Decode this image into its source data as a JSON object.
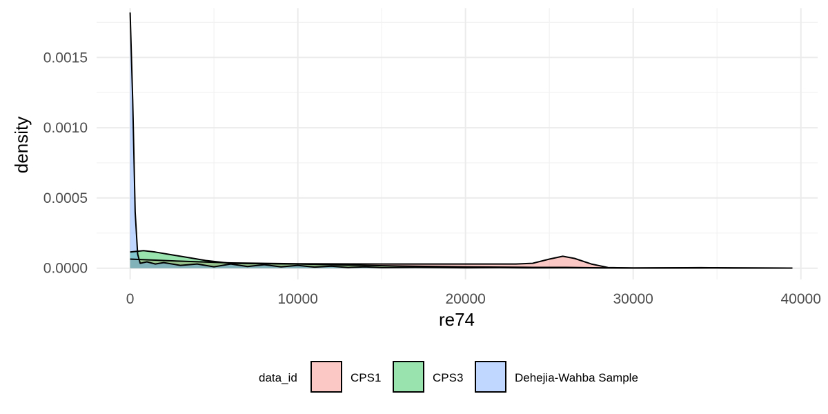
{
  "chart_data": {
    "type": "area",
    "xlabel": "re74",
    "ylabel": "density",
    "xlim": [
      -2000,
      41000
    ],
    "ylim": [
      -8e-05,
      0.00185
    ],
    "x_ticks": [
      0,
      10000,
      20000,
      30000,
      40000
    ],
    "x_tick_labels": [
      "0",
      "10000",
      "20000",
      "30000",
      "40000"
    ],
    "y_ticks": [
      0.0,
      0.0005,
      0.001,
      0.0015
    ],
    "y_tick_labels": [
      "0.0000",
      "0.0005",
      "0.0010",
      "0.0015"
    ],
    "grid": true,
    "legend": {
      "title": "data_id",
      "placement": "bottom",
      "entries": [
        "CPS1",
        "CPS3",
        "Dehejia-Wahba Sample"
      ]
    },
    "series": [
      {
        "name": "CPS1",
        "color": "#F8766D",
        "points": [
          [
            0,
            6.5e-05
          ],
          [
            1000,
            6e-05
          ],
          [
            3000,
            5e-05
          ],
          [
            6000,
            3.8e-05
          ],
          [
            10000,
            3.2e-05
          ],
          [
            15000,
            3e-05
          ],
          [
            20000,
            3e-05
          ],
          [
            23000,
            3e-05
          ],
          [
            24000,
            3.5e-05
          ],
          [
            25000,
            6.5e-05
          ],
          [
            25800,
            8.5e-05
          ],
          [
            26500,
            7e-05
          ],
          [
            27500,
            3e-05
          ],
          [
            28500,
            5e-06
          ],
          [
            30000,
            1e-06
          ],
          [
            35000,
            2e-06
          ],
          [
            39500,
            1e-06
          ]
        ]
      },
      {
        "name": "CPS3",
        "color": "#00BA38",
        "points": [
          [
            0,
            0.000115
          ],
          [
            400,
            0.00012
          ],
          [
            800,
            0.000125
          ],
          [
            1500,
            0.000115
          ],
          [
            2500,
            9.5e-05
          ],
          [
            3500,
            7.5e-05
          ],
          [
            4500,
            5.5e-05
          ],
          [
            6000,
            3.5e-05
          ],
          [
            8000,
            3.2e-05
          ],
          [
            10000,
            3e-05
          ],
          [
            13000,
            2.2e-05
          ],
          [
            16000,
            1.6e-05
          ],
          [
            20000,
            1e-05
          ],
          [
            24000,
            6e-06
          ],
          [
            26000,
            6e-06
          ],
          [
            28000,
            3e-06
          ],
          [
            30000,
            2e-06
          ],
          [
            35000,
            3e-06
          ],
          [
            39500,
            1e-06
          ]
        ]
      },
      {
        "name": "Dehejia-Wahba Sample",
        "color": "#619CFF",
        "points": [
          [
            0,
            0.00182
          ],
          [
            150,
            0.0012
          ],
          [
            300,
            0.0004
          ],
          [
            450,
            0.0001
          ],
          [
            600,
            3.5e-05
          ],
          [
            1000,
            4.5e-05
          ],
          [
            1500,
            3e-05
          ],
          [
            2000,
            4e-05
          ],
          [
            3000,
            2e-05
          ],
          [
            4000,
            3e-05
          ],
          [
            5000,
            1e-05
          ],
          [
            6000,
            3e-05
          ],
          [
            7000,
            1.2e-05
          ],
          [
            8000,
            2.5e-05
          ],
          [
            9000,
            1e-05
          ],
          [
            10000,
            2e-05
          ],
          [
            11000,
            8e-06
          ],
          [
            12000,
            1.5e-05
          ],
          [
            13000,
            5e-06
          ],
          [
            14000,
            1e-05
          ],
          [
            15000,
            4e-06
          ],
          [
            17000,
            6e-06
          ],
          [
            20000,
            3e-06
          ],
          [
            22000,
            4e-06
          ],
          [
            24000,
            2e-06
          ],
          [
            26000,
            3e-06
          ],
          [
            30000,
            1e-06
          ],
          [
            34000,
            4e-06
          ],
          [
            35000,
            3e-06
          ],
          [
            36000,
            1e-06
          ],
          [
            39500,
            1e-06
          ]
        ]
      }
    ]
  }
}
